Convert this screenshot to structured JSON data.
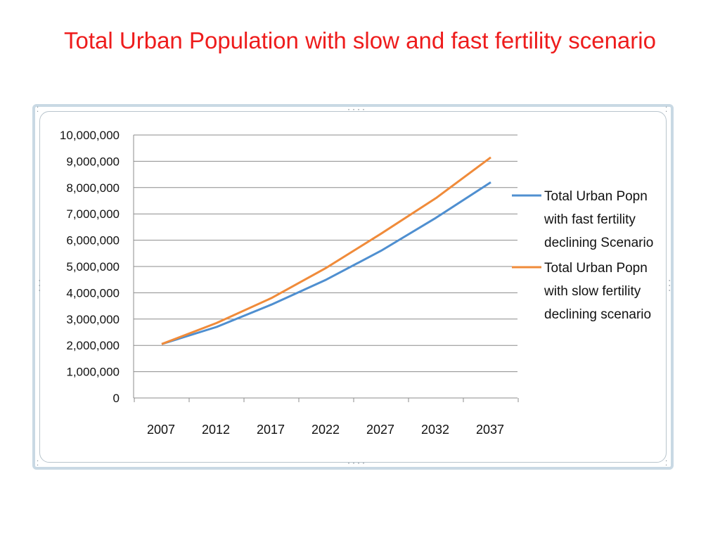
{
  "slide": {
    "title": "Total Urban Population with slow and fast fertility scenario"
  },
  "chart_data": {
    "type": "line",
    "title": "",
    "xlabel": "",
    "ylabel": "",
    "ylim": [
      0,
      10000000
    ],
    "yticks": [
      "0",
      "1,000,000",
      "2,000,000",
      "3,000,000",
      "4,000,000",
      "5,000,000",
      "6,000,000",
      "7,000,000",
      "8,000,000",
      "9,000,000",
      "10,000,000"
    ],
    "categories": [
      "2007",
      "2012",
      "2017",
      "2022",
      "2027",
      "2032",
      "2037"
    ],
    "x": [
      2007,
      2012,
      2017,
      2022,
      2027,
      2032,
      2037
    ],
    "grid": true,
    "legend_position": "right",
    "series": [
      {
        "name_lines": [
          "Total Urban Popn",
          "with fast fertility",
          "declining Scenario"
        ],
        "color": "#4f8fd0",
        "values": [
          2050000,
          2700000,
          3550000,
          4500000,
          5600000,
          6850000,
          8200000
        ]
      },
      {
        "name_lines": [
          "Total Urban Popn",
          "with slow fertility",
          "declining scenario"
        ],
        "color": "#f08b3a",
        "values": [
          2050000,
          2850000,
          3800000,
          4950000,
          6250000,
          7600000,
          9150000
        ]
      }
    ]
  }
}
